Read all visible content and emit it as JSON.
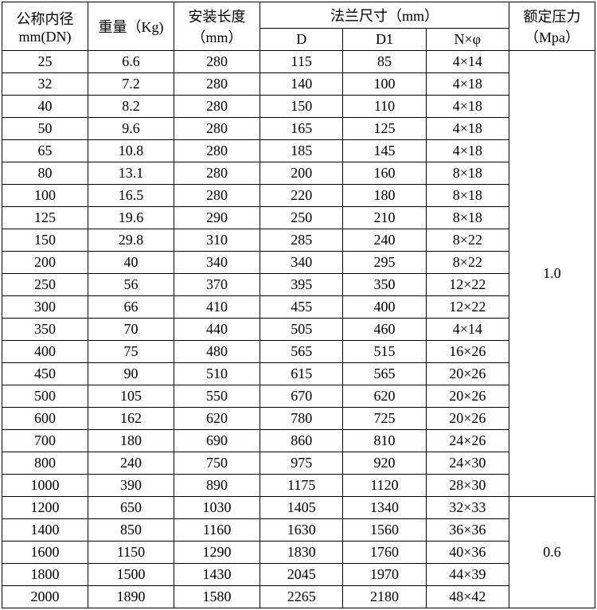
{
  "headers": {
    "dn": "公称内径\nmm(DN)",
    "weight": "重量（Kg)",
    "length": "安装长度（mm）",
    "flange": "法兰尺寸（mm）",
    "d": "D",
    "d1": "D1",
    "nphi": "N×φ",
    "pressure": "额定压力（Mpa）"
  },
  "rows": [
    {
      "dn": "25",
      "w": "6.6",
      "l": "280",
      "d": "115",
      "d1": "85",
      "np": "4×14"
    },
    {
      "dn": "32",
      "w": "7.2",
      "l": "280",
      "d": "140",
      "d1": "100",
      "np": "4×18"
    },
    {
      "dn": "40",
      "w": "8.2",
      "l": "280",
      "d": "150",
      "d1": "110",
      "np": "4×18"
    },
    {
      "dn": "50",
      "w": "9.6",
      "l": "280",
      "d": "165",
      "d1": "125",
      "np": "4×18"
    },
    {
      "dn": "65",
      "w": "10.8",
      "l": "280",
      "d": "185",
      "d1": "145",
      "np": "4×18"
    },
    {
      "dn": "80",
      "w": "13.1",
      "l": "280",
      "d": "200",
      "d1": "160",
      "np": "8×18"
    },
    {
      "dn": "100",
      "w": "16.5",
      "l": "280",
      "d": "220",
      "d1": "180",
      "np": "8×18"
    },
    {
      "dn": "125",
      "w": "19.6",
      "l": "290",
      "d": "250",
      "d1": "210",
      "np": "8×18"
    },
    {
      "dn": "150",
      "w": "29.8",
      "l": "310",
      "d": "285",
      "d1": "240",
      "np": "8×22"
    },
    {
      "dn": "200",
      "w": "40",
      "l": "340",
      "d": "340",
      "d1": "295",
      "np": "8×22"
    },
    {
      "dn": "250",
      "w": "56",
      "l": "370",
      "d": "395",
      "d1": "350",
      "np": "12×22"
    },
    {
      "dn": "300",
      "w": "66",
      "l": "410",
      "d": "455",
      "d1": "400",
      "np": "12×22"
    },
    {
      "dn": "350",
      "w": "70",
      "l": "440",
      "d": "505",
      "d1": "460",
      "np": "4×14"
    },
    {
      "dn": "400",
      "w": "75",
      "l": "480",
      "d": "565",
      "d1": "515",
      "np": "16×26"
    },
    {
      "dn": "450",
      "w": "90",
      "l": "510",
      "d": "615",
      "d1": "565",
      "np": "20×26"
    },
    {
      "dn": "500",
      "w": "105",
      "l": "550",
      "d": "670",
      "d1": "620",
      "np": "20×26"
    },
    {
      "dn": "600",
      "w": "162",
      "l": "620",
      "d": "780",
      "d1": "725",
      "np": "20×26"
    },
    {
      "dn": "700",
      "w": "180",
      "l": "690",
      "d": "860",
      "d1": "810",
      "np": "24×26"
    },
    {
      "dn": "800",
      "w": "240",
      "l": "750",
      "d": "975",
      "d1": "920",
      "np": "24×30"
    },
    {
      "dn": "1000",
      "w": "390",
      "l": "890",
      "d": "1175",
      "d1": "1120",
      "np": "28×30"
    },
    {
      "dn": "1200",
      "w": "650",
      "l": "1030",
      "d": "1405",
      "d1": "1340",
      "np": "32×33"
    },
    {
      "dn": "1400",
      "w": "850",
      "l": "1160",
      "d": "1630",
      "d1": "1560",
      "np": "36×36"
    },
    {
      "dn": "1600",
      "w": "1150",
      "l": "1290",
      "d": "1830",
      "d1": "1760",
      "np": "40×36"
    },
    {
      "dn": "1800",
      "w": "1500",
      "l": "1430",
      "d": "2045",
      "d1": "1970",
      "np": "44×39"
    },
    {
      "dn": "2000",
      "w": "1890",
      "l": "1580",
      "d": "2265",
      "d1": "2180",
      "np": "48×42"
    }
  ],
  "pressure_groups": [
    {
      "value": "1.0",
      "span": 20
    },
    {
      "value": "0.6",
      "span": 5
    }
  ]
}
